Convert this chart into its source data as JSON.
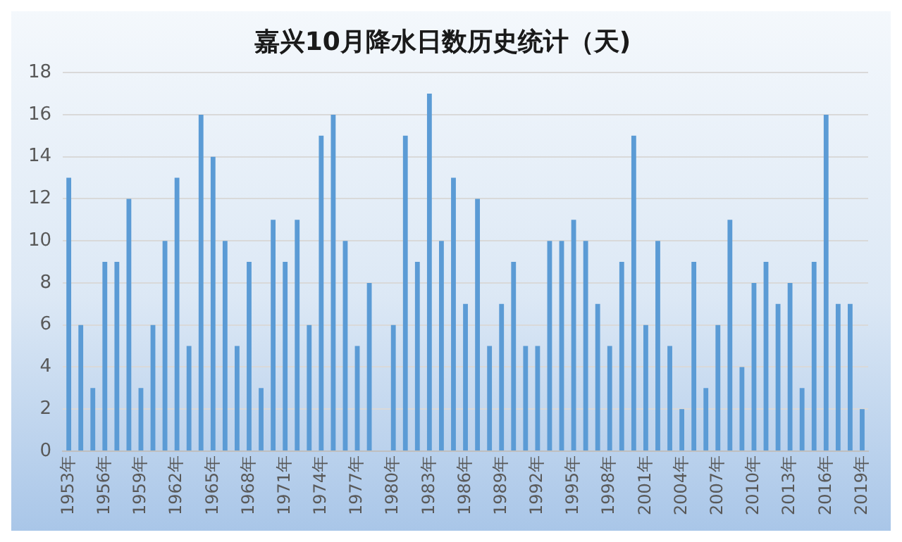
{
  "chart_data": {
    "type": "bar",
    "title": "嘉兴10月降水日数历史统计（天)",
    "categories": [
      "1953年",
      null,
      null,
      "1956年",
      null,
      null,
      "1959年",
      null,
      null,
      "1962年",
      null,
      null,
      "1965年",
      null,
      null,
      "1968年",
      null,
      null,
      "1971年",
      null,
      null,
      "1974年",
      null,
      null,
      "1977年",
      null,
      null,
      "1980年",
      null,
      null,
      "1983年",
      null,
      null,
      "1986年",
      null,
      null,
      "1989年",
      null,
      null,
      "1992年",
      null,
      null,
      "1995年",
      null,
      null,
      "1998年",
      null,
      null,
      "2001年",
      null,
      null,
      "2004年",
      null,
      null,
      "2007年",
      null,
      null,
      "2010年",
      null,
      null,
      "2013年",
      null,
      null,
      "2016年",
      null,
      null,
      "2019年"
    ],
    "values": [
      13,
      6,
      3,
      9,
      9,
      12,
      3,
      6,
      10,
      13,
      5,
      16,
      14,
      10,
      5,
      9,
      3,
      11,
      9,
      11,
      6,
      15,
      16,
      10,
      5,
      8,
      0,
      6,
      15,
      9,
      17,
      10,
      13,
      7,
      12,
      5,
      7,
      9,
      5,
      5,
      10,
      10,
      11,
      10,
      7,
      5,
      9,
      15,
      6,
      10,
      5,
      2,
      9,
      3,
      6,
      11,
      4,
      8,
      9,
      7,
      8,
      3,
      9,
      16,
      7,
      7,
      2
    ],
    "color": "#5b9bd5",
    "ylim": [
      0,
      18
    ],
    "yticks": [
      0,
      2,
      4,
      6,
      8,
      10,
      12,
      14,
      16,
      18
    ],
    "grid": "y",
    "legend": false
  }
}
